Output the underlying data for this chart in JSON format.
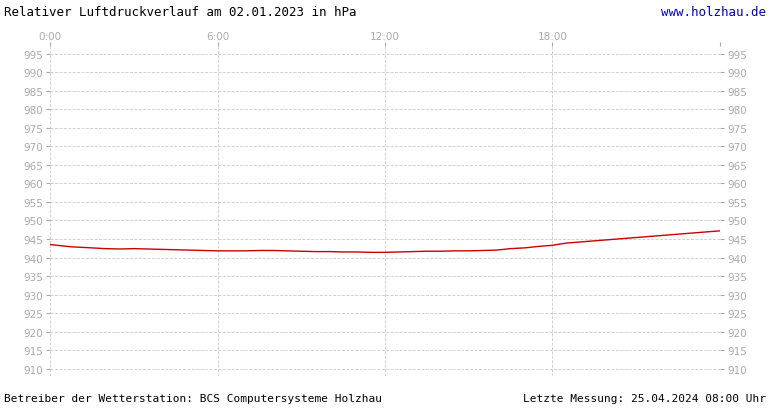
{
  "title": "Relativer Luftdruckverlauf am 02.01.2023 in hPa",
  "url_text": "www.holzhau.de",
  "bottom_left": "Betreiber der Wetterstation: BCS Computersysteme Holzhau",
  "bottom_right": "Letzte Messung: 25.04.2024 08:00 Uhr",
  "x_ticks": [
    0,
    6,
    12,
    18,
    24
  ],
  "x_tick_labels": [
    "0:00",
    "6:00",
    "12:00",
    "18:00",
    ""
  ],
  "ylim": [
    908,
    997
  ],
  "yticks": [
    910,
    915,
    920,
    925,
    930,
    935,
    940,
    945,
    950,
    955,
    960,
    965,
    970,
    975,
    980,
    985,
    990,
    995
  ],
  "xlim": [
    0,
    24
  ],
  "line_color": "#cc0000",
  "bg_color": "#ffffff",
  "plot_bg_color": "#ffffff",
  "grid_color": "#cccccc",
  "tick_color": "#aaaaaa",
  "text_color": "#000000",
  "url_color": "#0000cc",
  "pressure_x": [
    0.0,
    0.25,
    0.5,
    0.75,
    1.0,
    1.5,
    2.0,
    2.5,
    3.0,
    3.5,
    4.0,
    4.5,
    5.0,
    5.5,
    6.0,
    6.5,
    7.0,
    7.5,
    8.0,
    8.5,
    9.0,
    9.5,
    10.0,
    10.5,
    11.0,
    11.5,
    12.0,
    12.5,
    13.0,
    13.5,
    14.0,
    14.5,
    15.0,
    15.5,
    16.0,
    16.25,
    16.5,
    17.0,
    17.25,
    17.5,
    18.0,
    18.25,
    18.5,
    19.0,
    19.5,
    20.0,
    20.5,
    21.0,
    21.5,
    22.0,
    22.5,
    23.0,
    23.5,
    24.0
  ],
  "pressure_y": [
    943.5,
    943.3,
    943.1,
    942.9,
    942.8,
    942.6,
    942.4,
    942.3,
    942.4,
    942.3,
    942.2,
    942.1,
    942.0,
    941.9,
    941.8,
    941.8,
    941.8,
    941.9,
    941.9,
    941.8,
    941.7,
    941.6,
    941.6,
    941.5,
    941.5,
    941.4,
    941.4,
    941.5,
    941.6,
    941.7,
    941.7,
    941.8,
    941.8,
    941.9,
    942.0,
    942.2,
    942.4,
    942.6,
    942.8,
    943.0,
    943.3,
    943.6,
    943.9,
    944.2,
    944.5,
    944.8,
    945.1,
    945.4,
    945.7,
    946.0,
    946.3,
    946.6,
    946.9,
    947.2
  ]
}
